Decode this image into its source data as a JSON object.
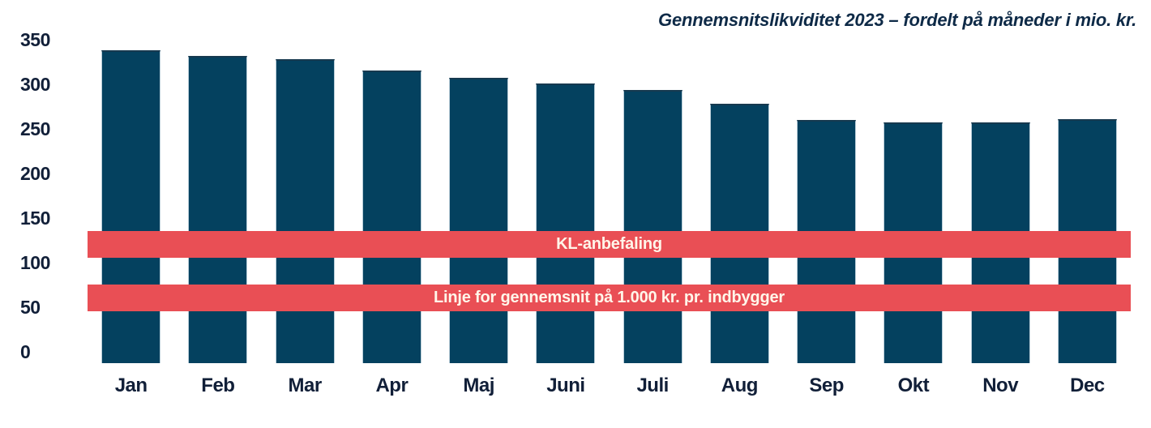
{
  "chart_data": {
    "type": "bar",
    "title": "Gennemsnitslikviditet 2023 – fordelt på måneder i mio. kr.",
    "unit": "mio. kr.",
    "categories": [
      "Jan",
      "Feb",
      "Mar",
      "Apr",
      "Maj",
      "Juni",
      "Juli",
      "Aug",
      "Sep",
      "Okt",
      "Nov",
      "Dec"
    ],
    "values": [
      351,
      345,
      341,
      328,
      320,
      314,
      306,
      291,
      273,
      270,
      270,
      274
    ],
    "xlabel": "",
    "ylabel": "",
    "ylim": [
      0,
      350
    ],
    "yticks": [
      0,
      50,
      100,
      150,
      200,
      250,
      300,
      350
    ],
    "grid": "off",
    "legend": "none",
    "reference_bands": [
      {
        "label": "KL-anbefaling",
        "from": 118,
        "to": 148
      },
      {
        "label": "Linje for gennemsnit på 1.000 kr. pr. indbygger",
        "from": 58,
        "to": 88
      }
    ],
    "colors": {
      "bar": "#04415F",
      "band": "#E94F55",
      "band_label": "#FFF6EA",
      "title": "#0E2A47",
      "axis_labels": "#111F38"
    }
  }
}
